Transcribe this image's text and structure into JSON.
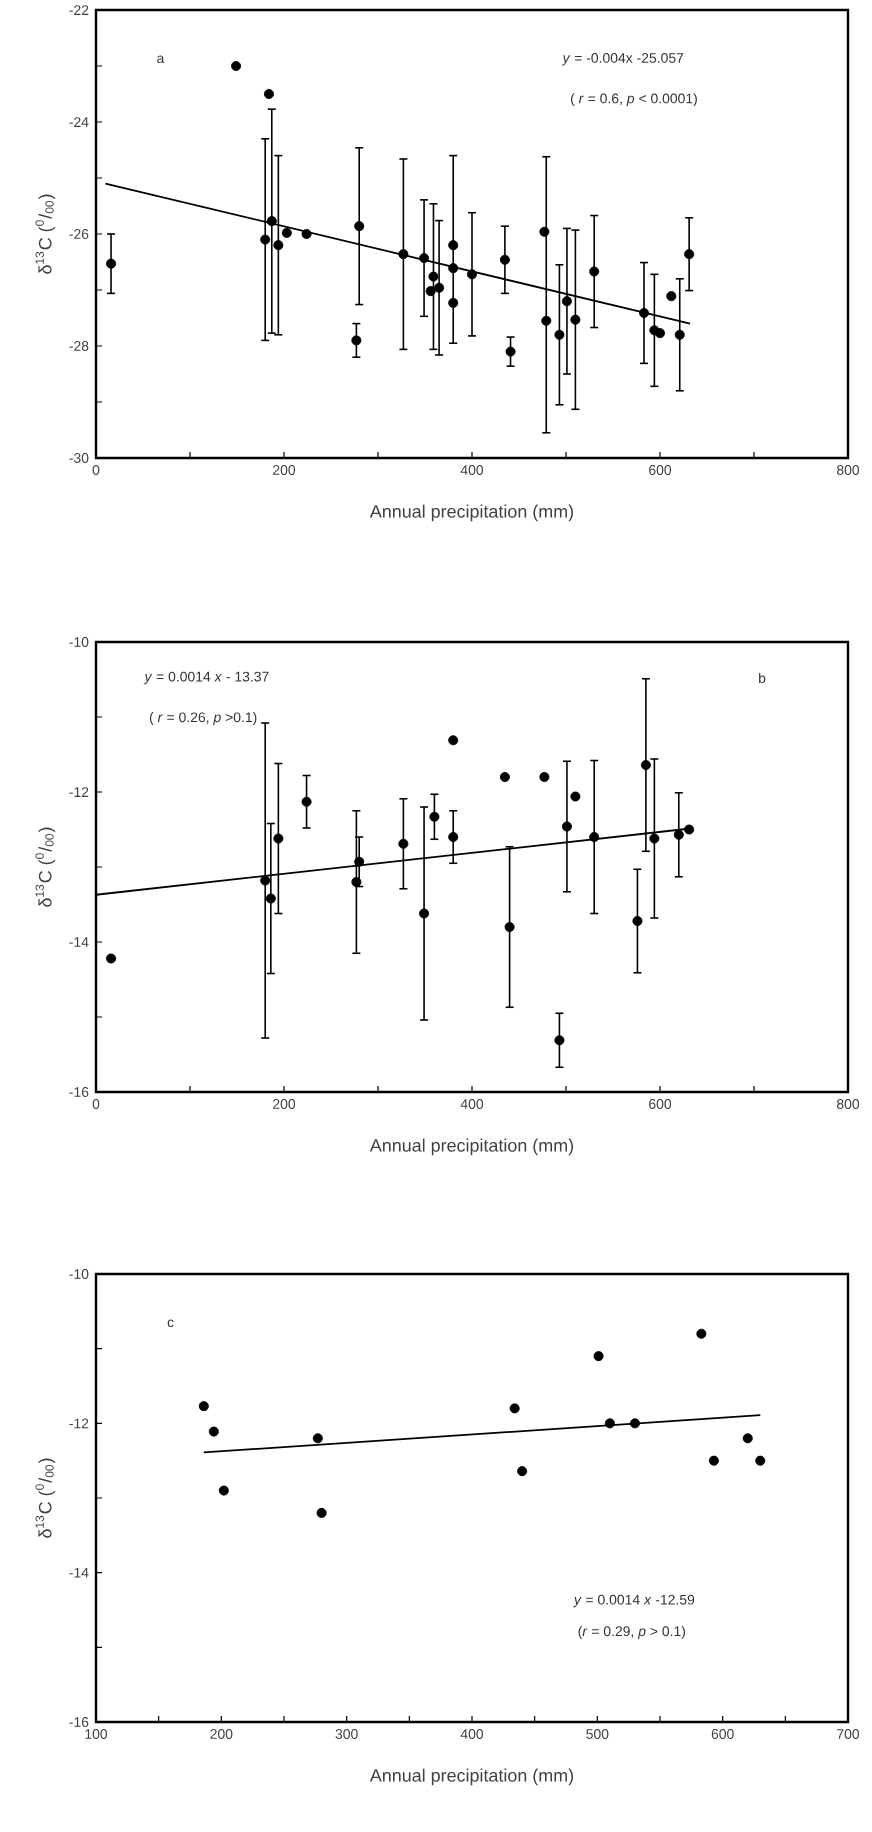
{
  "chart_data": [
    {
      "type": "scatter",
      "xlabel": "Annual precipitation (mm)",
      "ylabel": "δ$^{13}$C ($^{0}$/$_{00}$)",
      "annotations": [
        "a",
        "*y* = -0.004x -25.057",
        "( *r* = 0.6, *p* < 0.0001)"
      ],
      "xlim": [
        0,
        800
      ],
      "ylim": [
        -30,
        -22
      ],
      "xticks": [
        0,
        {
          "value": 100,
          "label": null
        },
        200,
        {
          "value": 300,
          "label": null
        },
        400,
        {
          "value": 500,
          "label": null
        },
        600,
        {
          "value": 700,
          "label": null
        },
        800
      ],
      "yticks": [
        -30,
        {
          "value": -29,
          "label": null
        },
        -28,
        {
          "value": -27,
          "label": null
        },
        -26,
        {
          "value": -25,
          "label": null
        },
        -24,
        {
          "value": -23,
          "label": null
        },
        -22
      ],
      "series": [
        {
          "marker": "circle",
          "color": "#000000",
          "x": [
            16,
            149,
            184,
            180,
            187,
            194,
            203,
            224,
            277,
            280,
            327,
            349,
            359,
            356,
            365,
            380,
            380,
            380,
            400,
            435,
            441,
            477,
            479,
            493,
            501,
            510,
            530,
            583,
            594,
            600,
            612,
            621,
            631
          ],
          "values": [
            -26.53,
            -23.0,
            -23.5,
            -26.1,
            -25.77,
            -26.2,
            -25.98,
            -26.0,
            -27.9,
            -25.86,
            -26.36,
            -26.43,
            -26.76,
            -27.02,
            -26.96,
            -26.2,
            -26.61,
            -27.23,
            -26.72,
            -26.46,
            -28.1,
            -25.96,
            -27.55,
            -27.8,
            -27.2,
            -27.53,
            -26.67,
            -27.41,
            -27.72,
            -27.77,
            -27.11,
            -27.8,
            -26.36
          ],
          "errors": [
            0.53,
            null,
            null,
            1.8,
            2.0,
            1.6,
            null,
            null,
            0.3,
            1.4,
            1.7,
            1.04,
            1.3,
            null,
            1.2,
            null,
            [
              -27.95,
              -24.6
            ],
            null,
            1.1,
            0.6,
            0.26,
            null,
            [
              -29.55,
              -24.62
            ],
            1.25,
            1.3,
            1.6,
            1.0,
            0.9,
            1.0,
            null,
            null,
            1.0,
            0.65
          ]
        },
        {
          "type": "line",
          "marker": "none",
          "color": "#000000",
          "x": [
            10,
            632
          ],
          "values": [
            -25.1,
            -27.6
          ]
        }
      ]
    },
    {
      "type": "scatter",
      "xlabel": "Annual precipitation (mm)",
      "ylabel": "δ$^{13}$C ($^{0}$/$_{00}$)",
      "annotations": [
        "b",
        "*y* = 0.0014 *x* - 13.37",
        "( *r* = 0.26, *p* >0.1)"
      ],
      "xlim": [
        0,
        800
      ],
      "ylim": [
        -16,
        -10
      ],
      "xticks": [
        0,
        {
          "value": 100,
          "label": null
        },
        200,
        {
          "value": 300,
          "label": null
        },
        400,
        {
          "value": 500,
          "label": null
        },
        600,
        {
          "value": 700,
          "label": null
        },
        800
      ],
      "yticks": [
        -16,
        {
          "value": -15,
          "label": null
        },
        -14,
        {
          "value": -13,
          "label": null
        },
        -12,
        {
          "value": -11,
          "label": null
        },
        -10
      ],
      "series": [
        {
          "marker": "circle",
          "color": "#000000",
          "x": [
            16,
            180,
            186,
            194,
            224,
            277,
            280,
            327,
            349,
            360,
            380,
            380,
            435,
            440,
            477,
            493,
            501,
            510,
            530,
            576,
            585,
            594,
            620,
            631
          ],
          "values": [
            -14.22,
            -13.18,
            -13.42,
            -12.62,
            -12.13,
            -13.2,
            -12.93,
            -12.69,
            -13.62,
            -12.33,
            -11.31,
            -12.6,
            -11.8,
            -13.8,
            -11.8,
            -15.31,
            -12.46,
            -12.06,
            -12.6,
            -13.72,
            -11.64,
            -12.62,
            -12.57,
            -12.5
          ],
          "errors": [
            null,
            2.1,
            1.0,
            1.0,
            0.35,
            0.95,
            0.33,
            0.6,
            1.42,
            0.3,
            null,
            0.35,
            null,
            1.07,
            null,
            0.36,
            0.87,
            null,
            1.02,
            0.69,
            1.15,
            1.06,
            0.56,
            null
          ]
        },
        {
          "type": "line",
          "marker": "none",
          "color": "#000000",
          "x": [
            0,
            630
          ],
          "values": [
            -13.37,
            -12.49
          ]
        }
      ]
    },
    {
      "type": "scatter",
      "xlabel": "Annual precipitation (mm)",
      "ylabel": "δ$^{13}$C ($^{0}$/$_{00}$)",
      "annotations": [
        "c",
        "*y* = 0.0014 *x* -12.59",
        "(*r* = 0.29, *p* > 0.1)"
      ],
      "xlim": [
        100,
        700
      ],
      "ylim": [
        -16,
        -10
      ],
      "xticks": [
        100,
        {
          "value": 150,
          "label": null
        },
        200,
        {
          "value": 250,
          "label": null
        },
        300,
        {
          "value": 350,
          "label": null
        },
        400,
        {
          "value": 450,
          "label": null
        },
        500,
        {
          "value": 550,
          "label": null
        },
        600,
        {
          "value": 650,
          "label": null
        },
        700
      ],
      "yticks": [
        -16,
        {
          "value": -15,
          "label": null
        },
        -14,
        {
          "value": -13,
          "label": null
        },
        -12,
        {
          "value": -11,
          "label": null
        },
        -10
      ],
      "series": [
        {
          "marker": "circle",
          "color": "#000000",
          "x": [
            186,
            194,
            202,
            277,
            280,
            434,
            440,
            501,
            510,
            530,
            583,
            593,
            620,
            630
          ],
          "values": [
            -11.77,
            -12.11,
            -12.9,
            -12.2,
            -13.2,
            -11.8,
            -12.64,
            -11.1,
            -12.0,
            -12.0,
            -10.8,
            -12.5,
            -12.2,
            -12.5
          ]
        },
        {
          "type": "line",
          "marker": "none",
          "color": "#000000",
          "x": [
            186,
            630
          ],
          "values": [
            -12.39,
            -11.89
          ]
        }
      ]
    }
  ]
}
